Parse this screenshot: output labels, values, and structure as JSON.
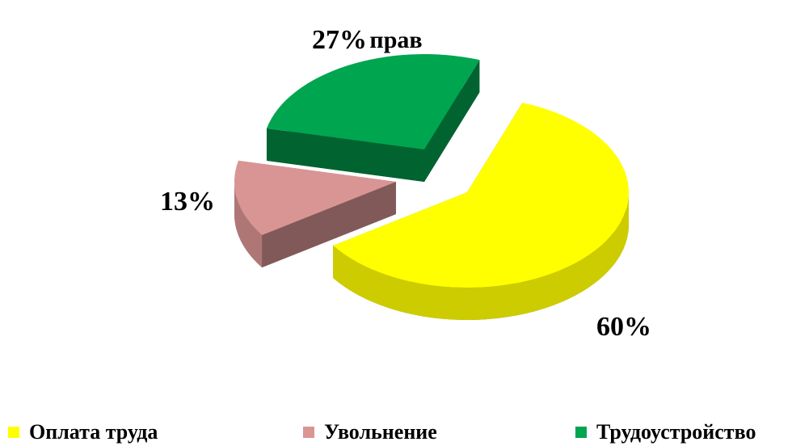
{
  "chart_data": {
    "type": "pie",
    "title": "прав",
    "categories": [
      "Оплата труда",
      "Увольнение",
      "Трудоустройство"
    ],
    "values": [
      60,
      13,
      27
    ],
    "value_labels": [
      "60%",
      "13%",
      "27%"
    ],
    "colors": [
      "#ffff00",
      "#d99594",
      "#00a550"
    ],
    "legend": "bottom"
  }
}
